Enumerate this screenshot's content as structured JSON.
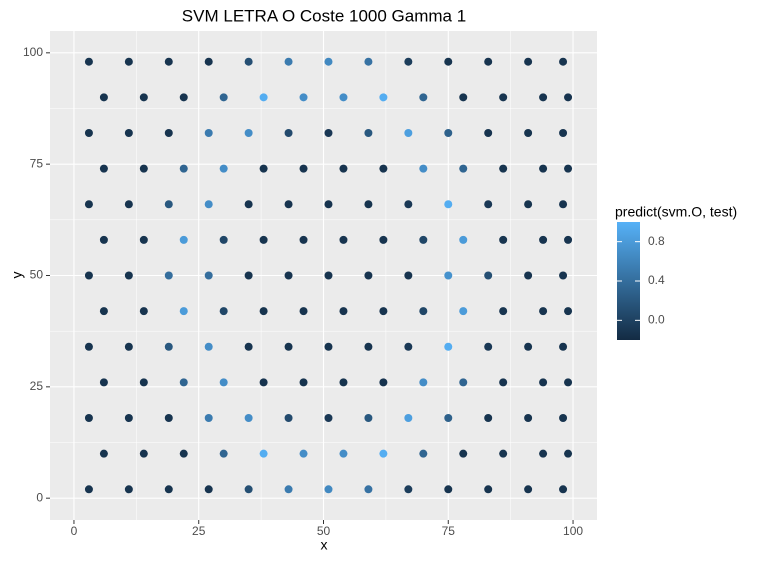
{
  "chart_data": {
    "type": "scatter",
    "title": "SVM LETRA O Coste 1000 Gamma 1",
    "xlabel": "x",
    "ylabel": "y",
    "legend_title": "predict(svm.O, test)",
    "x": [
      3,
      11,
      19,
      27,
      35,
      43,
      51,
      59,
      67,
      75,
      83,
      91,
      98,
      6,
      14,
      22,
      30,
      38,
      46,
      54,
      62,
      70,
      78,
      86,
      94,
      99,
      3,
      11,
      19,
      27,
      35,
      43,
      51,
      59,
      67,
      75,
      83,
      91,
      98,
      6,
      14,
      22,
      30,
      38,
      46,
      54,
      62,
      70,
      78,
      86,
      94,
      99,
      3,
      11,
      19,
      27,
      35,
      43,
      51,
      59,
      67,
      75,
      83,
      91,
      98,
      6,
      14,
      22,
      30,
      38,
      46,
      54,
      62,
      70,
      78,
      86,
      94,
      99,
      3,
      11,
      19,
      27,
      35,
      43,
      51,
      59,
      67,
      75,
      83,
      91,
      98,
      6,
      14,
      22,
      30,
      38,
      46,
      54,
      62,
      70,
      78,
      86,
      94,
      99,
      3,
      11,
      19,
      27,
      35,
      43,
      51,
      59,
      67,
      75,
      83,
      91,
      98,
      6,
      14,
      22,
      30,
      38,
      46,
      54,
      62,
      70,
      78,
      86,
      94,
      99,
      3,
      11,
      19,
      27,
      35,
      43,
      51,
      59,
      67,
      75,
      83,
      91,
      98,
      6,
      14,
      22,
      30,
      38,
      46,
      54,
      62,
      70,
      78,
      86,
      94,
      99,
      3,
      11,
      19,
      27,
      35,
      43,
      51,
      59,
      67,
      75,
      83,
      91,
      98
    ],
    "y": [
      2,
      2,
      2,
      2,
      2,
      2,
      2,
      2,
      2,
      2,
      2,
      2,
      2,
      10,
      10,
      10,
      10,
      10,
      10,
      10,
      10,
      10,
      10,
      10,
      10,
      10,
      18,
      18,
      18,
      18,
      18,
      18,
      18,
      18,
      18,
      18,
      18,
      18,
      18,
      26,
      26,
      26,
      26,
      26,
      26,
      26,
      26,
      26,
      26,
      26,
      26,
      26,
      34,
      34,
      34,
      34,
      34,
      34,
      34,
      34,
      34,
      34,
      34,
      34,
      34,
      42,
      42,
      42,
      42,
      42,
      42,
      42,
      42,
      42,
      42,
      42,
      42,
      42,
      50,
      50,
      50,
      50,
      50,
      50,
      50,
      50,
      50,
      50,
      50,
      50,
      50,
      58,
      58,
      58,
      58,
      58,
      58,
      58,
      58,
      58,
      58,
      58,
      58,
      58,
      66,
      66,
      66,
      66,
      66,
      66,
      66,
      66,
      66,
      66,
      66,
      66,
      66,
      74,
      74,
      74,
      74,
      74,
      74,
      74,
      74,
      74,
      74,
      74,
      74,
      74,
      82,
      82,
      82,
      82,
      82,
      82,
      82,
      82,
      82,
      82,
      82,
      82,
      82,
      90,
      90,
      90,
      90,
      90,
      90,
      90,
      90,
      90,
      90,
      90,
      90,
      90,
      98,
      98,
      98,
      98,
      98,
      98,
      98,
      98,
      98,
      98,
      98,
      98,
      98
    ],
    "values": [
      -0.12,
      -0.12,
      -0.12,
      -0.12,
      0.12,
      0.52,
      0.64,
      0.44,
      -0.04,
      -0.12,
      -0.12,
      -0.12,
      -0.12,
      -0.12,
      -0.12,
      -0.12,
      0.32,
      0.96,
      0.68,
      0.68,
      0.96,
      0.32,
      -0.12,
      -0.12,
      -0.12,
      -0.12,
      -0.12,
      -0.12,
      -0.12,
      0.52,
      0.68,
      0.08,
      -0.08,
      0.2,
      0.84,
      0.28,
      -0.12,
      -0.12,
      -0.12,
      -0.12,
      -0.12,
      0.32,
      0.68,
      -0.12,
      -0.12,
      -0.12,
      -0.12,
      0.68,
      0.32,
      -0.12,
      -0.12,
      -0.12,
      -0.12,
      -0.12,
      0.2,
      0.68,
      -0.12,
      -0.12,
      -0.12,
      -0.12,
      -0.08,
      0.96,
      -0.08,
      -0.12,
      -0.12,
      -0.12,
      -0.12,
      0.8,
      0.04,
      -0.12,
      -0.12,
      -0.12,
      -0.12,
      0.04,
      0.8,
      -0.12,
      -0.12,
      -0.12,
      -0.12,
      -0.12,
      0.4,
      0.4,
      -0.12,
      -0.12,
      -0.12,
      -0.12,
      -0.12,
      0.72,
      0.12,
      -0.12,
      -0.12,
      -0.12,
      -0.12,
      0.8,
      0.04,
      -0.12,
      -0.12,
      -0.12,
      -0.12,
      0.04,
      0.8,
      -0.12,
      -0.12,
      -0.12,
      -0.12,
      -0.12,
      0.2,
      0.68,
      -0.12,
      -0.12,
      -0.12,
      -0.12,
      -0.08,
      0.96,
      -0.08,
      -0.12,
      -0.12,
      -0.12,
      -0.12,
      0.32,
      0.68,
      -0.12,
      -0.12,
      -0.12,
      -0.12,
      0.68,
      0.32,
      -0.12,
      -0.12,
      -0.12,
      -0.12,
      -0.12,
      -0.12,
      0.52,
      0.68,
      0.08,
      -0.08,
      0.2,
      0.84,
      0.28,
      -0.12,
      -0.12,
      -0.12,
      -0.12,
      -0.12,
      -0.12,
      0.32,
      0.96,
      0.68,
      0.68,
      0.96,
      0.32,
      -0.12,
      -0.12,
      -0.12,
      -0.12,
      -0.12,
      -0.12,
      -0.12,
      -0.12,
      0.12,
      0.52,
      0.64,
      0.44,
      -0.04,
      -0.12,
      -0.12,
      -0.12,
      -0.12
    ],
    "low_color": "#132B43",
    "high_color": "#56B1F7",
    "colorlim": [
      -0.2,
      1.0
    ],
    "colorticks": [
      {
        "value": 0,
        "label": "0.0"
      },
      {
        "value": 0.4,
        "label": "0.4"
      },
      {
        "value": 0.8,
        "label": "0.8"
      }
    ],
    "xlim": [
      -4.8,
      104.8
    ],
    "ylim": [
      -4.9,
      104.9
    ],
    "xticks": [
      0,
      25,
      50,
      75,
      100
    ],
    "yticks": [
      0,
      25,
      50,
      75,
      100
    ],
    "grid": true
  }
}
